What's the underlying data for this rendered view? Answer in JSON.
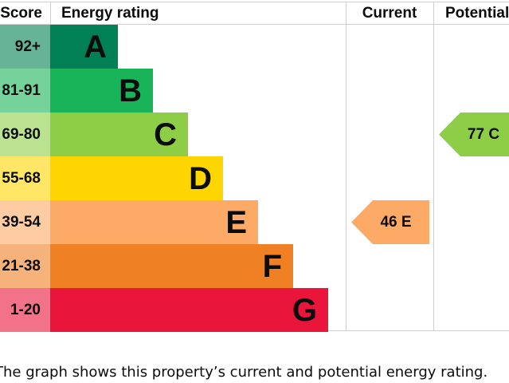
{
  "chart_data": {
    "type": "bar",
    "title": "",
    "headers": {
      "score": "Score",
      "rating": "Energy rating",
      "current": "Current",
      "potential": "Potential"
    },
    "bands": [
      {
        "letter": "A",
        "range": "92+",
        "color": "#008054"
      },
      {
        "letter": "B",
        "range": "81-91",
        "color": "#19b459"
      },
      {
        "letter": "C",
        "range": "69-80",
        "color": "#8dce46"
      },
      {
        "letter": "D",
        "range": "55-68",
        "color": "#ffd500"
      },
      {
        "letter": "E",
        "range": "39-54",
        "color": "#fcaa65"
      },
      {
        "letter": "F",
        "range": "21-38",
        "color": "#ef8023"
      },
      {
        "letter": "G",
        "range": "1-20",
        "color": "#e9153b"
      }
    ],
    "current": {
      "score": 46,
      "band": "E",
      "label": "46  E"
    },
    "potential": {
      "score": 77,
      "band": "C",
      "label": "77  C"
    }
  },
  "caption": "The graph shows this property’s current and potential energy rating."
}
